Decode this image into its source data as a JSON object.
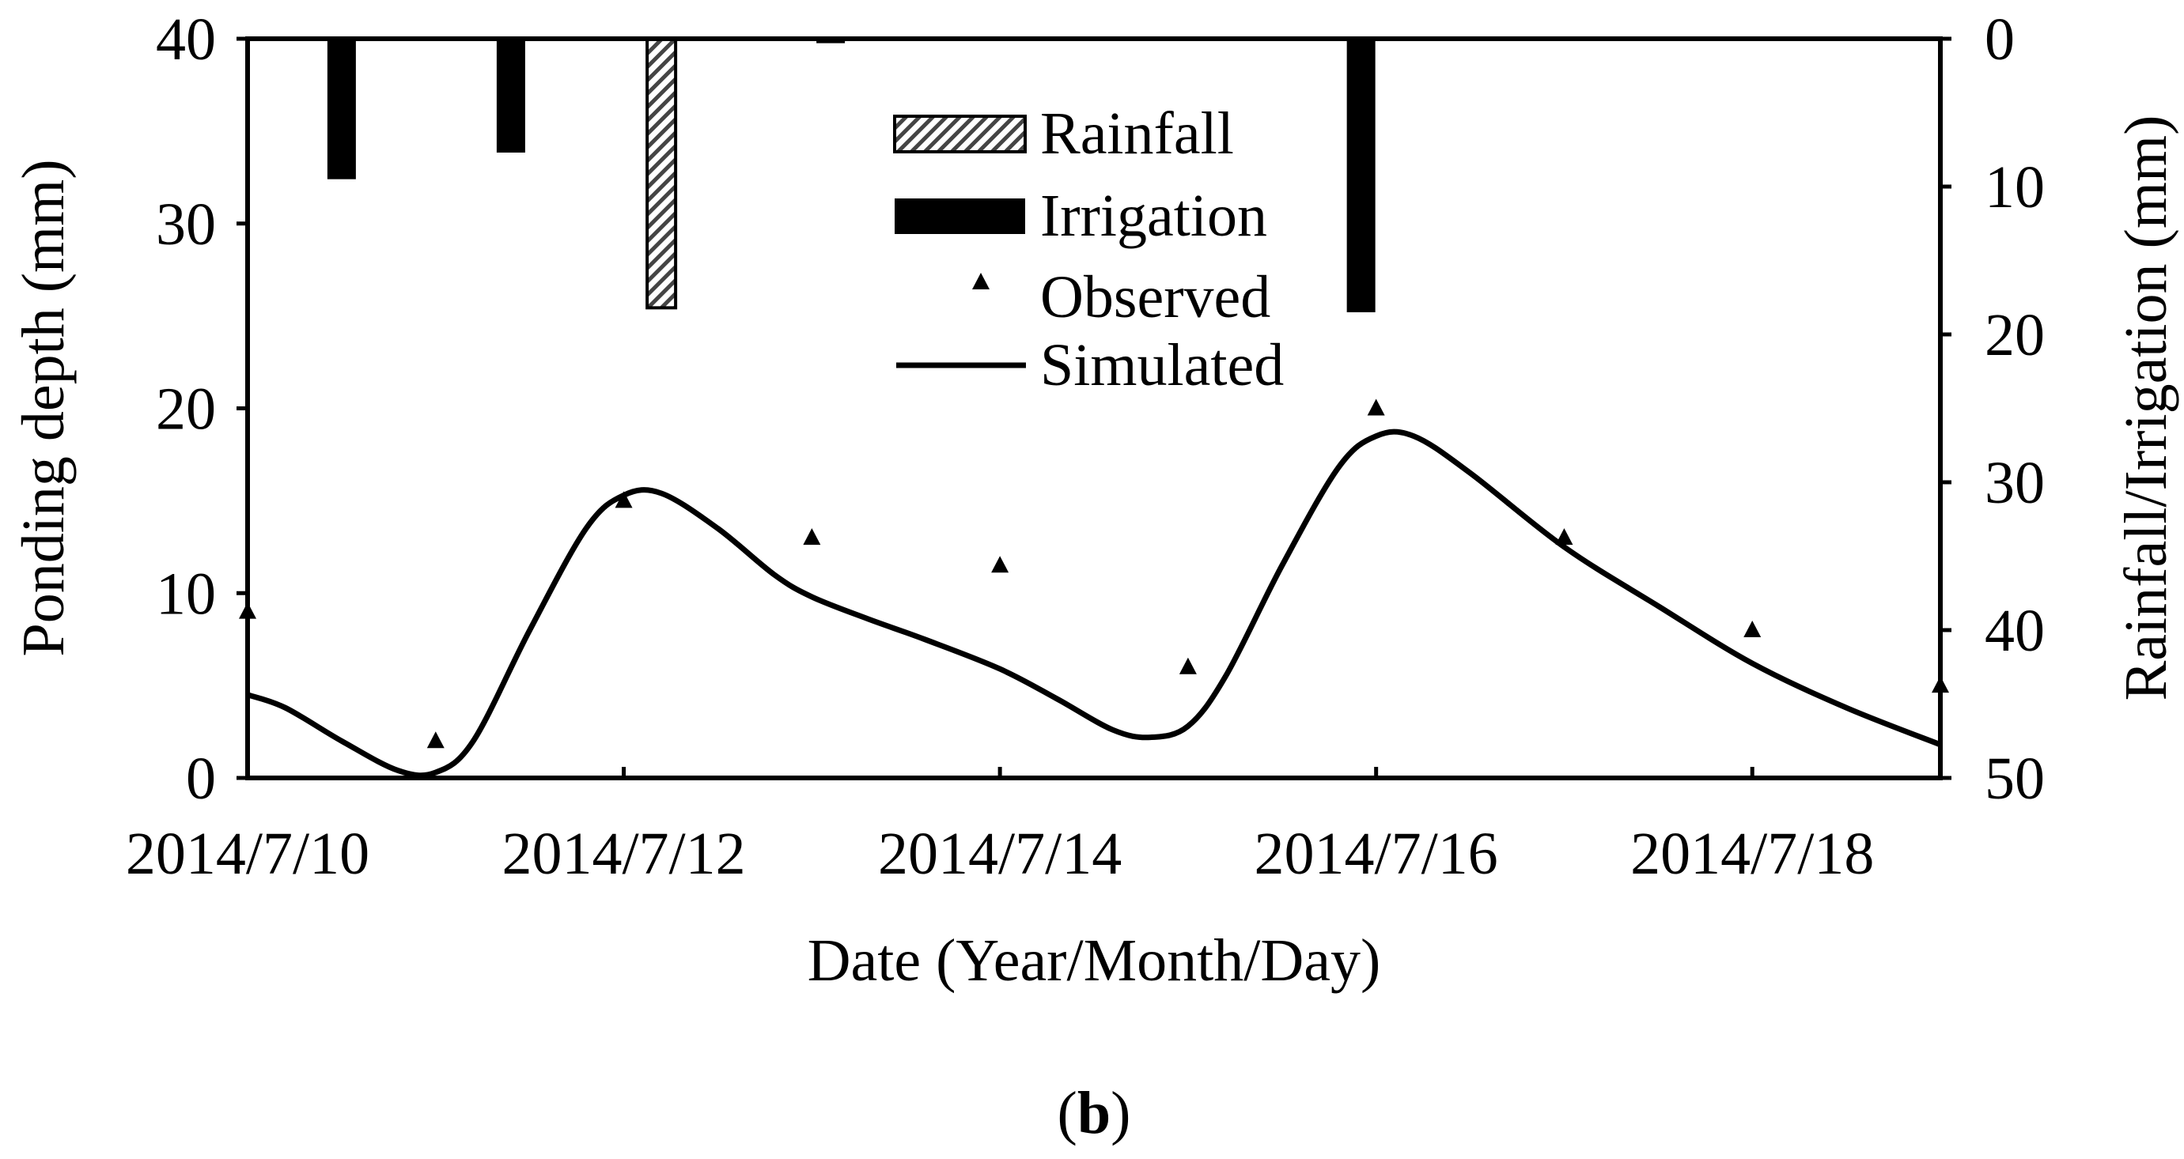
{
  "chart_data": {
    "type": "line",
    "panel_label_open": "(",
    "panel_label_letter": "b",
    "panel_label_close": ")",
    "xlabel": "Date (Year/Month/Day)",
    "ylabel": "Ponding depth (mm)",
    "y2label": "Rainfall/Irrigation (mm)",
    "xlim": [
      0,
      9
    ],
    "ylim": [
      0,
      40
    ],
    "y2lim": [
      0,
      50
    ],
    "y2_inverted": true,
    "x_ticks": [
      {
        "x": 0,
        "label": "2014/7/10"
      },
      {
        "x": 2,
        "label": "2014/7/12"
      },
      {
        "x": 4,
        "label": "2014/7/14"
      },
      {
        "x": 6,
        "label": "2014/7/16"
      },
      {
        "x": 8,
        "label": "2014/7/18"
      }
    ],
    "y_ticks": [
      0,
      10,
      20,
      30,
      40
    ],
    "y2_ticks": [
      0,
      10,
      20,
      30,
      40,
      50
    ],
    "legend": {
      "position": "top-center",
      "rainfall": "Rainfall",
      "irrigation": "Irrigation",
      "observed": "Observed",
      "simulated": "Simulated"
    },
    "bars": [
      {
        "series": "irrigation",
        "x": 0.5,
        "value": 9.5
      },
      {
        "series": "irrigation",
        "x": 1.4,
        "value": 7.7
      },
      {
        "series": "rainfall",
        "x": 2.2,
        "value": 18.2
      },
      {
        "series": "irrigation",
        "x": 3.1,
        "value": 0.3
      },
      {
        "series": "irrigation",
        "x": 5.92,
        "value": 18.5
      }
    ],
    "series": [
      {
        "name": "Observed",
        "kind": "marker-triangle",
        "x": [
          0,
          1,
          2,
          3,
          4,
          5,
          6,
          7,
          8,
          9
        ],
        "y": [
          9,
          2,
          15,
          13,
          11.5,
          6,
          20,
          13,
          8,
          5
        ]
      },
      {
        "name": "Simulated",
        "kind": "line",
        "x": [
          0,
          0.2,
          0.5,
          0.8,
          1.0,
          1.2,
          1.5,
          1.8,
          2.0,
          2.2,
          2.5,
          2.8,
          3.0,
          3.3,
          3.6,
          4.0,
          4.3,
          4.6,
          4.8,
          5.0,
          5.2,
          5.5,
          5.8,
          6.0,
          6.2,
          6.5,
          7.0,
          7.5,
          8.0,
          8.5,
          9.0
        ],
        "y": [
          4.5,
          3.8,
          2.0,
          0.4,
          0.3,
          2.0,
          8.0,
          13.5,
          15.3,
          15.4,
          13.5,
          11.0,
          9.8,
          8.6,
          7.5,
          5.9,
          4.3,
          2.6,
          2.2,
          2.8,
          5.5,
          11.5,
          16.8,
          18.5,
          18.5,
          16.5,
          12.5,
          9.3,
          6.2,
          3.8,
          1.8
        ]
      }
    ]
  }
}
